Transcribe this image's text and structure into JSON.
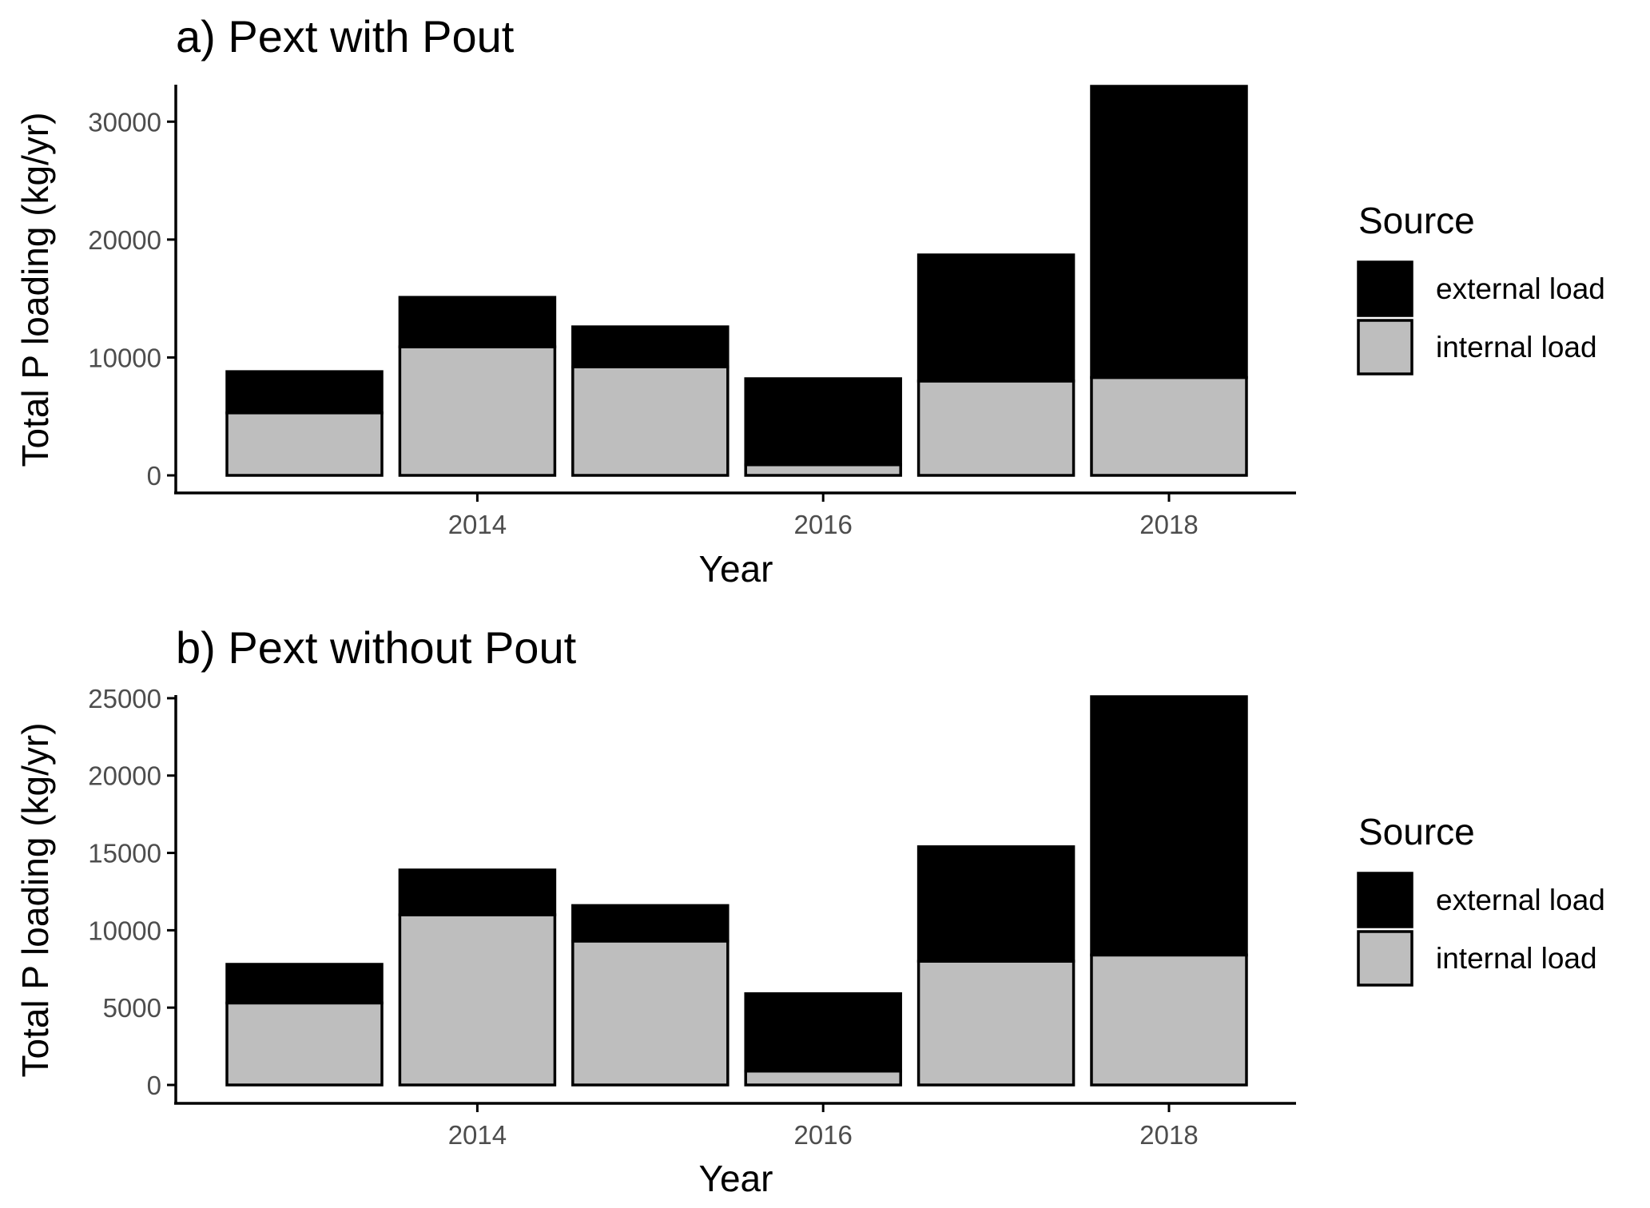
{
  "colors": {
    "external load": "#000000",
    "internal load": "#bebebe",
    "axis": "#000000",
    "tick_label": "#4d4d4d"
  },
  "chart_data": [
    {
      "type": "bar",
      "stacked": true,
      "title": "a) Pext with Pout",
      "xlabel": "Year",
      "ylabel": "Total P loading (kg/yr)",
      "x": [
        2013,
        2014,
        2015,
        2016,
        2017,
        2018
      ],
      "xticks": [
        2014,
        2016,
        2018
      ],
      "yticks": [
        0,
        10000,
        20000,
        30000
      ],
      "ylim": [
        0,
        33000
      ],
      "legend_title": "Source",
      "legend_position": "right",
      "grid": false,
      "series": [
        {
          "name": "internal load",
          "values": [
            5300,
            10900,
            9200,
            900,
            8000,
            8300
          ]
        },
        {
          "name": "external load",
          "values": [
            3500,
            4200,
            3400,
            7300,
            10700,
            24700
          ]
        }
      ]
    },
    {
      "type": "bar",
      "stacked": true,
      "title": "b) Pext without Pout",
      "xlabel": "Year",
      "ylabel": "Total P loading (kg/yr)",
      "x": [
        2013,
        2014,
        2015,
        2016,
        2017,
        2018
      ],
      "xticks": [
        2014,
        2016,
        2018
      ],
      "yticks": [
        0,
        5000,
        10000,
        15000,
        20000,
        25000
      ],
      "ylim": [
        0,
        25100
      ],
      "legend_title": "Source",
      "legend_position": "right",
      "grid": false,
      "series": [
        {
          "name": "internal load",
          "values": [
            5300,
            11000,
            9300,
            900,
            8000,
            8400
          ]
        },
        {
          "name": "external load",
          "values": [
            2500,
            2900,
            2300,
            5000,
            7400,
            16700
          ]
        }
      ]
    }
  ]
}
